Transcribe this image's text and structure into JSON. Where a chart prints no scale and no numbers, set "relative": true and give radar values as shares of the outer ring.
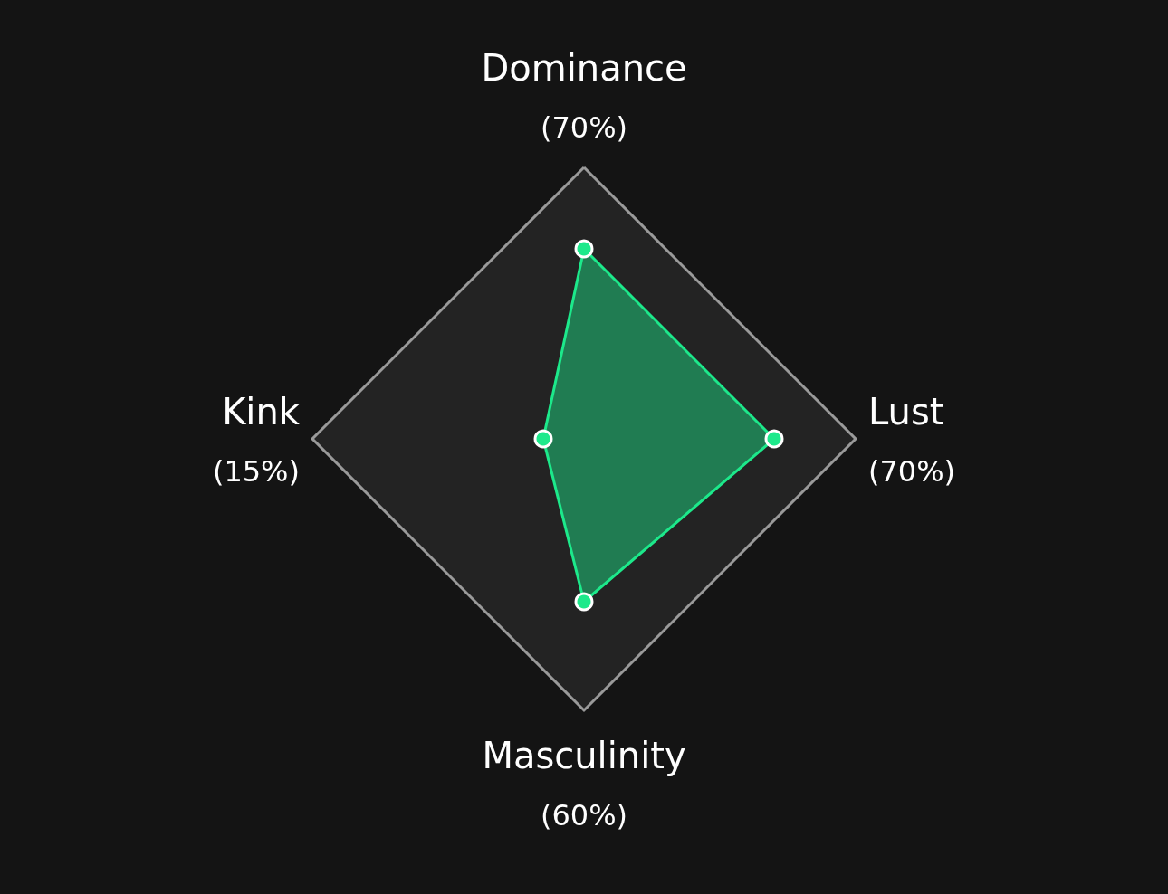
{
  "chart_data": {
    "type": "radar",
    "categories": [
      "Dominance",
      "Lust",
      "Masculinity",
      "Kink"
    ],
    "series": [
      {
        "color": "#1de98b",
        "values": [
          0.7,
          0.7,
          0.6,
          0.15
        ]
      }
    ],
    "relative": true,
    "annotations": [
      "(70%)",
      "(70%)",
      "(60%)",
      "(15%)"
    ],
    "marker": "circle"
  }
}
